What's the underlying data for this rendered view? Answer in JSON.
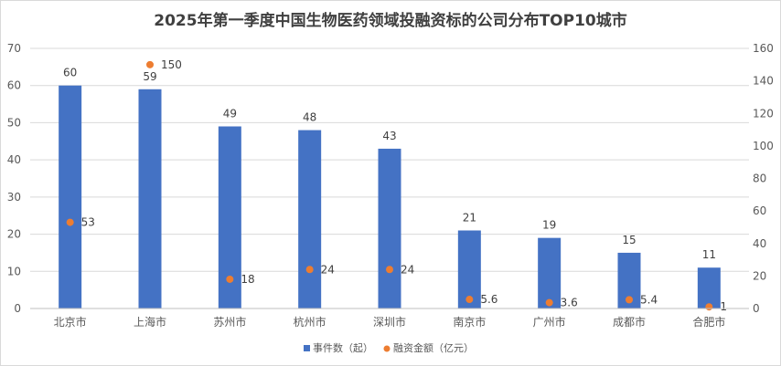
{
  "chart_data": {
    "type": "bar",
    "title": "2025年第一季度中国生物医药领域投融资标的公司分布TOP10城市",
    "categories": [
      "北京市",
      "上海市",
      "苏州市",
      "杭州市",
      "深圳市",
      "南京市",
      "广州市",
      "成都市",
      "合肥市"
    ],
    "series": [
      {
        "name": "事件数（起）",
        "type": "bar",
        "axis": "left",
        "color": "#4472c4",
        "values": [
          60,
          59,
          49,
          48,
          43,
          21,
          19,
          15,
          11
        ],
        "labels": [
          "60",
          "59",
          "49",
          "48",
          "43",
          "21",
          "19",
          "15",
          "11"
        ]
      },
      {
        "name": "融资金额（亿元）",
        "type": "scatter",
        "axis": "right",
        "color": "#ed7d31",
        "values": [
          53,
          150,
          18,
          24,
          24,
          5.6,
          3.6,
          5.4,
          1
        ],
        "labels": [
          "53",
          "150",
          "18",
          "24",
          "24",
          "5.6",
          "3.6",
          "5.4",
          "1"
        ]
      }
    ],
    "y_left": {
      "min": 0,
      "max": 70,
      "step": 10,
      "ticks": [
        "0",
        "10",
        "20",
        "30",
        "40",
        "50",
        "60",
        "70"
      ]
    },
    "y_right": {
      "min": 0,
      "max": 160,
      "step": 20,
      "ticks": [
        "0",
        "20",
        "40",
        "60",
        "80",
        "100",
        "120",
        "140",
        "160"
      ]
    },
    "grid": true,
    "legend_position": "bottom"
  }
}
